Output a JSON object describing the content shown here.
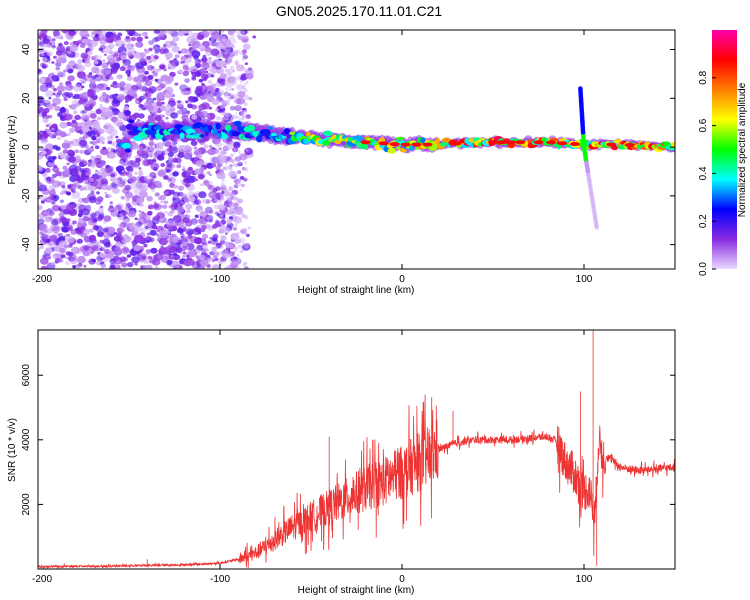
{
  "figure": {
    "title": "GN05.2025.170.11.01.C21"
  },
  "colors": {
    "snr_line": "#ee3333",
    "axis": "#000000",
    "background": "#ffffff"
  },
  "chart_data": [
    {
      "type": "heatmap",
      "name": "spectrogram",
      "xlabel": "Height of straight line (km)",
      "ylabel": "Frequency (Hz)",
      "xlim": [
        -200,
        150
      ],
      "ylim": [
        -50,
        48
      ],
      "x_ticks": [
        "-200",
        "-100",
        "0",
        "100"
      ],
      "y_ticks": [
        "40",
        "20",
        "0",
        "-20",
        "-40"
      ],
      "colorbar": {
        "label": "Normalized spectral amplitude",
        "range": [
          0,
          1
        ],
        "ticks": [
          "0.0",
          "0.2",
          "0.4",
          "0.6",
          "0.8"
        ],
        "colormap": [
          "#e8d8ff",
          "#8a2be2",
          "#0000ff",
          "#00ffff",
          "#00ff00",
          "#ffff00",
          "#ff7f00",
          "#ff0000",
          "#ff00aa"
        ]
      },
      "grid": false,
      "features": {
        "noise_region_x": [
          -200,
          -85
        ],
        "band_center_hz": [
          [
            -150,
            7
          ],
          [
            -120,
            7
          ],
          [
            -100,
            7
          ],
          [
            -80,
            6
          ],
          [
            -60,
            4
          ],
          [
            -40,
            3
          ],
          [
            -20,
            2
          ],
          [
            0,
            1
          ],
          [
            20,
            1
          ],
          [
            40,
            2
          ],
          [
            60,
            2
          ],
          [
            80,
            2
          ],
          [
            100,
            1
          ],
          [
            120,
            1
          ],
          [
            150,
            0
          ]
        ],
        "spike": {
          "x": 100,
          "f_top": 24,
          "f_bottom": -33
        }
      }
    },
    {
      "type": "line",
      "name": "snr",
      "xlabel": "Height of straight line (km)",
      "ylabel": "SNR (10 * v/v)",
      "xlim": [
        -200,
        150
      ],
      "ylim": [
        0,
        7400
      ],
      "x_ticks": [
        "-200",
        "-100",
        "0",
        "100"
      ],
      "y_ticks": [
        "6000",
        "4000",
        "2000"
      ],
      "grid": false,
      "series": [
        {
          "x": [
            -200,
            -180,
            -160,
            -140,
            -120,
            -100,
            -90,
            -80,
            -70,
            -60,
            -50,
            -40,
            -30,
            -20,
            -10,
            0,
            10,
            20,
            30,
            40,
            50,
            60,
            70,
            80,
            85,
            90,
            95,
            100,
            103,
            106,
            108,
            110,
            115,
            120,
            130,
            140,
            150
          ],
          "y": [
            80,
            80,
            90,
            110,
            130,
            180,
            300,
            500,
            900,
            1300,
            1600,
            1900,
            2200,
            2500,
            2700,
            3000,
            3300,
            3700,
            3900,
            4000,
            4000,
            4000,
            4050,
            4100,
            3950,
            3300,
            2900,
            2400,
            2500,
            1500,
            4000,
            3500,
            3400,
            3150,
            3050,
            3100,
            3150
          ],
          "spikes": [
            {
              "x": -140,
              "y": 300
            },
            {
              "x": -40,
              "y": 4100
            },
            {
              "x": 28,
              "y": 4900
            },
            {
              "x": 98,
              "y": 5500
            },
            {
              "x": 105,
              "y": 7400
            },
            {
              "x": 107,
              "y": 100
            }
          ]
        }
      ]
    }
  ]
}
